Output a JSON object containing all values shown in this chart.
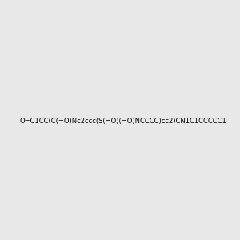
{
  "smiles": "O=C1CC(C(=O)Nc2ccc(S(=O)(=O)NCCCC)cc2)CN1C1CCCCC1",
  "image_size": 300,
  "background_color": "#e8e8e8",
  "bond_color": "#1a1a1a",
  "atom_colors": {
    "N": "#4a9090",
    "O": "#ff2200",
    "S": "#ccaa00"
  }
}
